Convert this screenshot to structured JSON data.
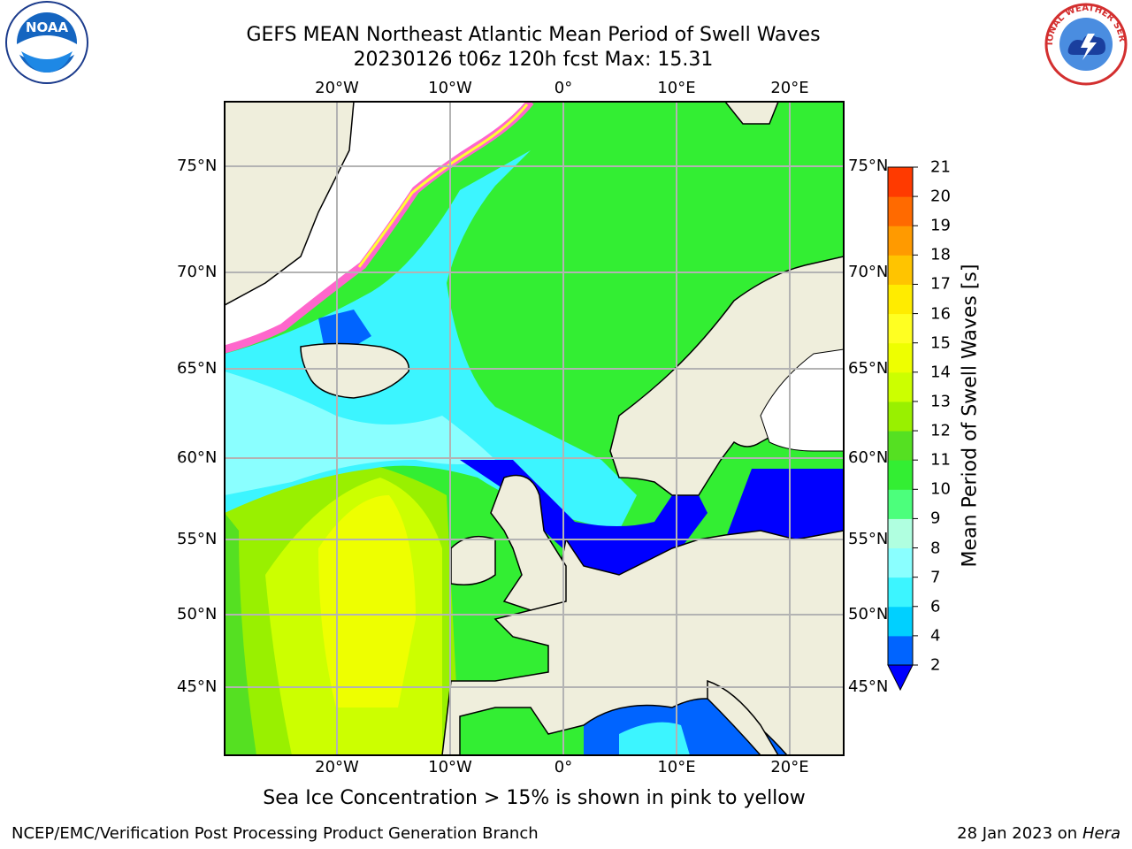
{
  "title": {
    "line1": "GEFS MEAN Northeast Atlantic Mean Period of Swell Waves",
    "line2": "20230126 t06z 120h fcst   Max: 15.31"
  },
  "logos": {
    "left_text": "NOAA",
    "right_text": "NATIONAL WEATHER SERVICE"
  },
  "map": {
    "lat_labels_left": [
      "75°N",
      "70°N",
      "65°N",
      "60°N",
      "55°N",
      "50°N",
      "45°N"
    ],
    "lat_labels_right": [
      "75°N",
      "70°N",
      "65°N",
      "60°N",
      "55°N",
      "50°N",
      "45°N"
    ],
    "lon_labels_top": [
      "20°W",
      "10°W",
      "0°",
      "10°E",
      "20°E"
    ],
    "lon_labels_bottom": [
      "20°W",
      "10°W",
      "0°",
      "10°E",
      "20°E"
    ],
    "colors": {
      "land": "#efeedc",
      "ocean_mid": "#44ff44",
      "ice_pink": "#ff66cc",
      "ice_yellow": "#ffff33",
      "low": "#0000ff"
    }
  },
  "colorbar": {
    "label": "Mean Period of Swell Waves [s]",
    "ticks": [
      "2",
      "4",
      "6",
      "7",
      "8",
      "9",
      "10",
      "11",
      "12",
      "13",
      "14",
      "15",
      "16",
      "17",
      "18",
      "19",
      "20",
      "21"
    ],
    "colors": [
      "#0064ff",
      "#00d0ff",
      "#3cf5ff",
      "#8affff",
      "#b0ffe0",
      "#4cff7c",
      "#33ee33",
      "#55e022",
      "#99f000",
      "#ccff00",
      "#eeff00",
      "#ffff22",
      "#ffec00",
      "#ffc400",
      "#ff9a00",
      "#ff6a00",
      "#ff3a00",
      "#ff0d00"
    ],
    "extend_color": "#0000ff"
  },
  "note": "Sea Ice Concentration > 15% is shown in pink to yellow",
  "footer": {
    "left": "NCEP/EMC/Verification Post Processing Product Generation Branch",
    "right_date": "28 Jan 2023 on",
    "right_host": "Hera"
  }
}
